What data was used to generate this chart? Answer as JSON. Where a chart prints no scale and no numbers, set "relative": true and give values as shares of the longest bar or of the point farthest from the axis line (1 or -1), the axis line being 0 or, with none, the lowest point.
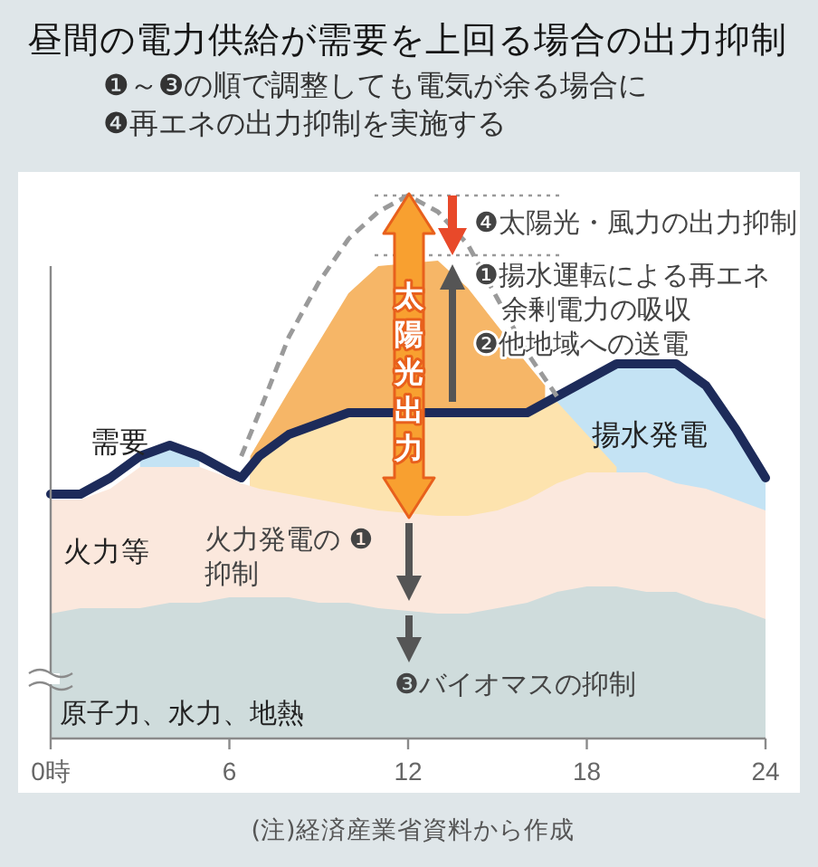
{
  "chart_data": {
    "type": "area",
    "title": "昼間の電力供給が需要を上回る場合の出力抑制",
    "subtitle": "❶～❸の順で調整しても電気が余る場合に\n❹再エネの出力抑制を実施する",
    "annotations": [
      "太陽光出力",
      "❹太陽光・風力の出力抑制",
      "❶揚水運転による再エネ余剰電力の吸収",
      "❷他地域への送電",
      "火力発電の ❶抑制",
      "❸バイオマスの抑制",
      "(注)経済産業省資料から作成"
    ],
    "x": [
      0,
      1,
      2,
      3,
      4,
      5,
      6,
      6.4,
      7,
      8,
      9,
      10,
      11,
      13,
      14,
      15,
      16,
      17,
      18,
      19,
      20,
      21,
      22,
      23,
      24
    ],
    "xlim": [
      0,
      24
    ],
    "xticks": [
      {
        "value": 0,
        "label": "0時"
      },
      6,
      12,
      18,
      24
    ],
    "relative": true,
    "series": [
      {
        "color": "#f6b667",
        "x": [
          6.7,
          8,
          9,
          10,
          11,
          13,
          14,
          15,
          16,
          16.6
        ],
        "values": [
          0.52,
          0.64,
          0.73,
          0.82,
          0.87,
          0.88,
          0.83,
          0.76,
          0.69,
          0.65
        ]
      },
      {
        "name": "揚水発電",
        "color": "#c4e3f4",
        "x": [
          3,
          4,
          5,
          6,
          17,
          18,
          19,
          20,
          21,
          22,
          23,
          24
        ],
        "values": [
          0.52,
          0.54,
          0.52,
          null,
          0.63,
          0.66,
          0.69,
          0.69,
          0.69,
          0.65,
          0.57,
          0.48
        ]
      },
      {
        "color": "#fde3ae",
        "x": [
          6.7,
          7,
          8,
          9,
          10,
          11,
          13,
          14,
          15,
          16,
          17,
          18,
          19
        ],
        "values": [
          0.5,
          0.52,
          0.56,
          0.58,
          0.6,
          0.6,
          0.6,
          0.6,
          0.6,
          0.6,
          0.62,
          0.56,
          0.5
        ]
      },
      {
        "name": "火力等",
        "color": "#fbe8dd",
        "values": [
          0.44,
          0.44,
          0.46,
          0.5,
          0.5,
          0.5,
          0.48,
          0.47,
          0.46,
          0.45,
          0.44,
          0.43,
          0.42,
          0.41,
          0.41,
          0.42,
          0.44,
          0.47,
          0.49,
          0.49,
          0.49,
          0.47,
          0.46,
          0.44,
          0.42
        ]
      },
      {
        "name": "原子力、水力、地熱",
        "color": "#cfdcdc",
        "values": [
          0.23,
          0.24,
          0.24,
          0.24,
          0.25,
          0.25,
          0.26,
          0.26,
          0.26,
          0.26,
          0.25,
          0.25,
          0.24,
          0.23,
          0.23,
          0.24,
          0.25,
          0.27,
          0.28,
          0.28,
          0.27,
          0.27,
          0.25,
          0.24,
          0.22
        ]
      },
      {
        "name": "需要",
        "type": "line",
        "color": "#1d2b5a",
        "values": [
          0.45,
          0.45,
          0.48,
          0.52,
          0.54,
          0.52,
          0.49,
          0.48,
          0.52,
          0.56,
          0.58,
          0.6,
          0.6,
          0.6,
          0.6,
          0.6,
          0.6,
          0.63,
          0.66,
          0.69,
          0.69,
          0.69,
          0.65,
          0.57,
          0.48
        ]
      },
      {
        "type": "line",
        "color": "#9a9a9a",
        "line_style": "dashed",
        "x": [
          6.4,
          7,
          8,
          9,
          10,
          11,
          12,
          13,
          14,
          15,
          16,
          17
        ],
        "values": [
          0.52,
          0.6,
          0.74,
          0.84,
          0.92,
          0.97,
          1,
          0.97,
          0.91,
          0.81,
          0.71,
          0.63
        ]
      }
    ],
    "ref_lines": [
      {
        "axis": "y",
        "value": 1,
        "line_style": "dotted",
        "color": "#9a9a9a"
      },
      {
        "axis": "y",
        "value": 0.89,
        "line_style": "dotted",
        "color": "#9a9a9a"
      }
    ]
  }
}
